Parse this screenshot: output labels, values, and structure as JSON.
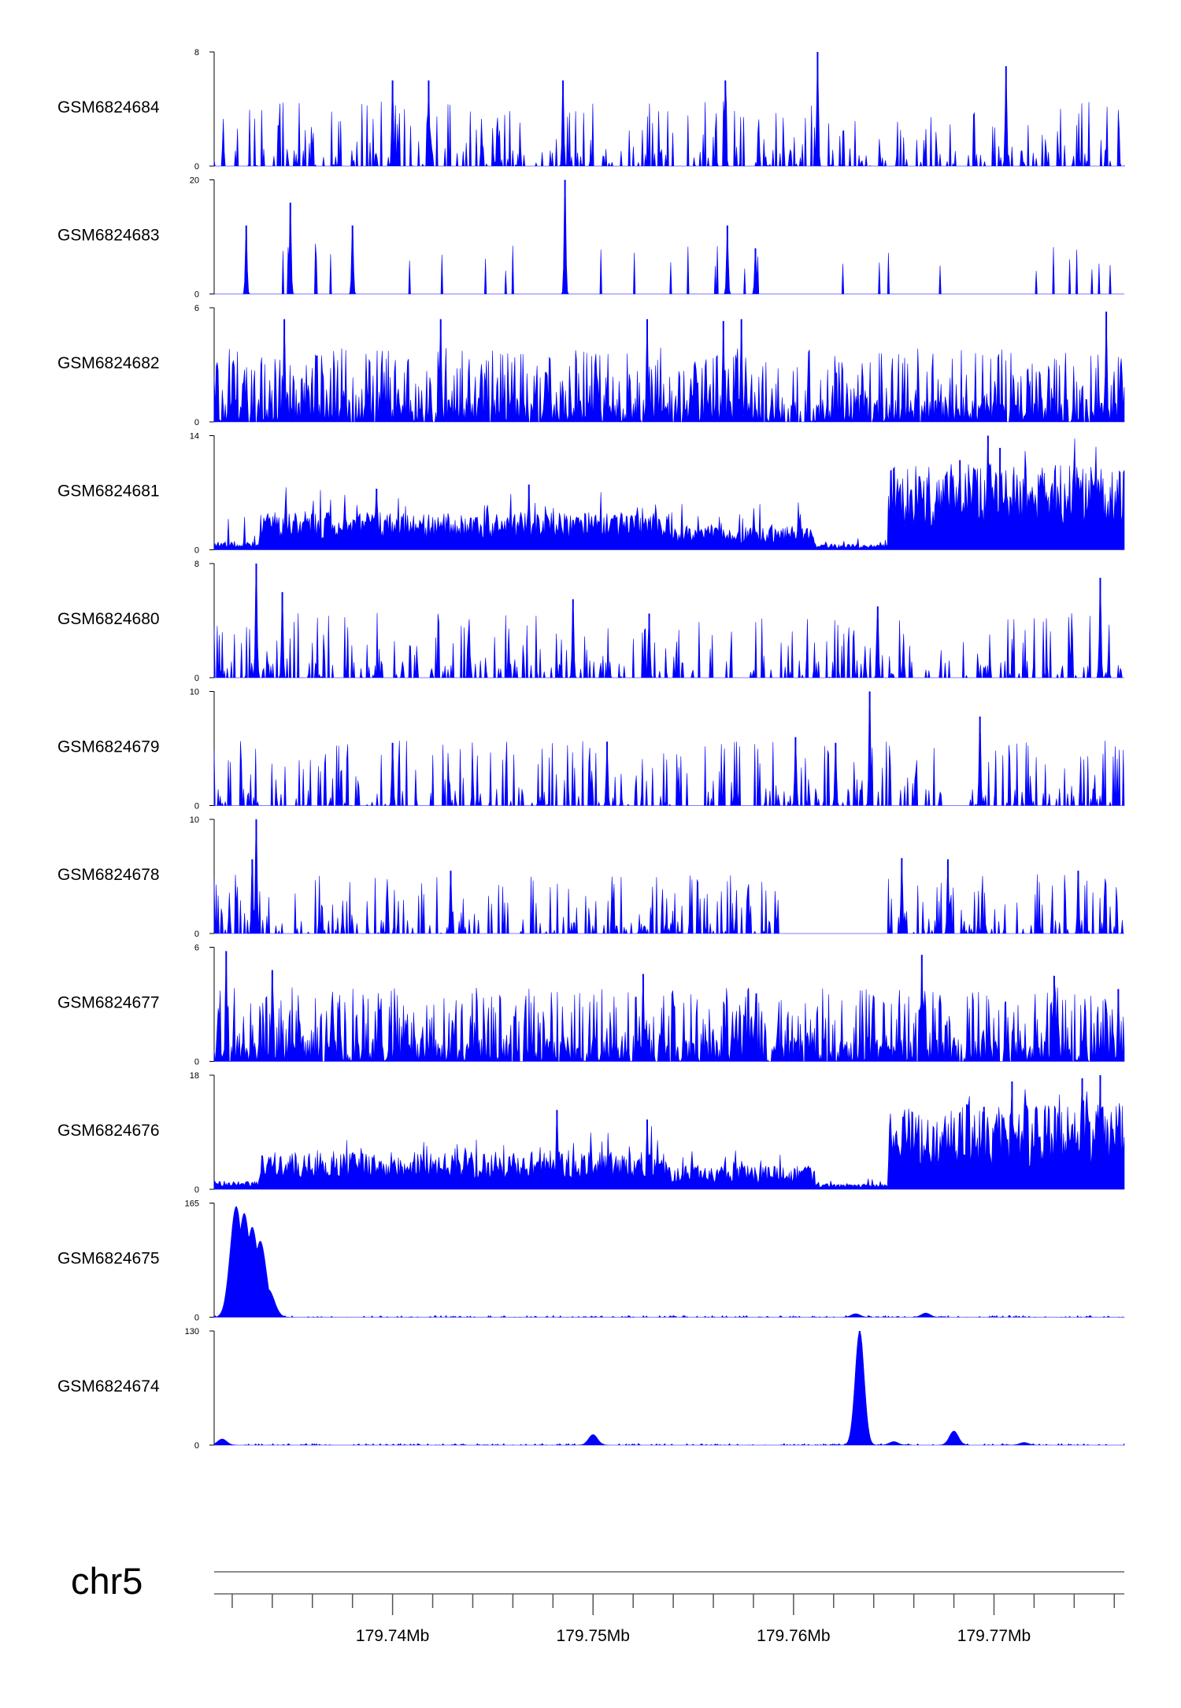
{
  "chart_data": {
    "type": "area",
    "title": "",
    "chromosome": "chr5",
    "xlim": [
      179.7311,
      179.7765
    ],
    "x_unit": "Mb",
    "x_major_ticks": [
      179.74,
      179.75,
      179.76,
      179.77
    ],
    "x_tick_labels": [
      "179.74Mb",
      "179.75Mb",
      "179.76Mb",
      "179.77Mb"
    ],
    "fill_color": "#0000ff",
    "axis_color": "#000000",
    "tracks": [
      {
        "name": "GSM6824684",
        "ymax": 8,
        "ymin": 0,
        "profile": "sparse",
        "seed": 684,
        "peaks": [
          [
            179.74,
            6
          ],
          [
            179.7418,
            6
          ],
          [
            179.7485,
            6
          ],
          [
            179.7612,
            8
          ],
          [
            179.7706,
            7
          ],
          [
            179.7566,
            6
          ]
        ]
      },
      {
        "name": "GSM6824683",
        "ymax": 20,
        "ymin": 0,
        "profile": "very-sparse",
        "seed": 683,
        "peaks": [
          [
            179.7327,
            12
          ],
          [
            179.7349,
            16
          ],
          [
            179.738,
            12
          ],
          [
            179.7486,
            20
          ],
          [
            179.7567,
            12
          ],
          [
            179.7581,
            8
          ]
        ]
      },
      {
        "name": "GSM6824682",
        "ymax": 6,
        "ymin": 0,
        "profile": "dense",
        "seed": 682,
        "peaks": [
          [
            179.7346,
            5.4
          ],
          [
            179.7424,
            5.4
          ],
          [
            179.7527,
            5.4
          ],
          [
            179.7565,
            5.3
          ],
          [
            179.7574,
            5.4
          ],
          [
            179.7756,
            5.8
          ]
        ]
      },
      {
        "name": "GSM6824681",
        "ymax": 14,
        "ymin": 0,
        "profile": "rising",
        "seed": 681,
        "peaks": [
          [
            179.7392,
            7.5
          ],
          [
            179.7468,
            8
          ],
          [
            179.765,
            10
          ],
          [
            179.7697,
            14
          ],
          [
            179.7703,
            12.5
          ],
          [
            179.7683,
            11
          ]
        ]
      },
      {
        "name": "GSM6824680",
        "ymax": 8,
        "ymin": 0,
        "profile": "sparse",
        "seed": 680,
        "peaks": [
          [
            179.7332,
            8
          ],
          [
            179.7345,
            6
          ],
          [
            179.749,
            5.5
          ],
          [
            179.7528,
            4.5
          ],
          [
            179.7642,
            5
          ],
          [
            179.7753,
            7
          ]
        ]
      },
      {
        "name": "GSM6824679",
        "ymax": 10,
        "ymin": 0,
        "profile": "sparse",
        "seed": 679,
        "peaks": [
          [
            179.7638,
            10
          ],
          [
            179.7621,
            5.5
          ],
          [
            179.7601,
            6
          ],
          [
            179.7693,
            7.8
          ],
          [
            179.74,
            5.5
          ],
          [
            179.7507,
            5.6
          ]
        ]
      },
      {
        "name": "GSM6824678",
        "ymax": 10,
        "ymin": 0,
        "profile": "gappy",
        "seed": 678,
        "peaks": [
          [
            179.7332,
            10
          ],
          [
            179.733,
            6.5
          ],
          [
            179.7429,
            5.5
          ],
          [
            179.7654,
            6.6
          ],
          [
            179.7677,
            6.5
          ],
          [
            179.7742,
            5.5
          ]
        ]
      },
      {
        "name": "GSM6824677",
        "ymax": 6,
        "ymin": 0,
        "profile": "dense",
        "seed": 677,
        "peaks": [
          [
            179.7317,
            5.8
          ],
          [
            179.734,
            4.8
          ],
          [
            179.7525,
            4.6
          ],
          [
            179.7664,
            5.6
          ],
          [
            179.773,
            4.5
          ],
          [
            179.7762,
            3.8
          ]
        ]
      },
      {
        "name": "GSM6824676",
        "ymax": 18,
        "ymin": 0,
        "profile": "rising",
        "seed": 676,
        "peaks": [
          [
            179.7482,
            12.5
          ],
          [
            179.7527,
            11
          ],
          [
            179.7709,
            17
          ],
          [
            179.7753,
            18
          ],
          [
            179.7744,
            17.5
          ],
          [
            179.7695,
            13
          ]
        ]
      },
      {
        "name": "GSM6824675",
        "ymax": 165,
        "ymin": 0,
        "profile": "spike",
        "seed": 675,
        "peaks": [
          [
            179.7322,
            160
          ],
          [
            179.7326,
            150
          ],
          [
            179.733,
            130
          ],
          [
            179.7334,
            110
          ],
          [
            179.7338,
            40
          ],
          [
            179.7631,
            5
          ],
          [
            179.7666,
            6
          ]
        ]
      },
      {
        "name": "GSM6824674",
        "ymax": 130,
        "ymin": 0,
        "profile": "spike",
        "seed": 674,
        "peaks": [
          [
            179.7633,
            130
          ],
          [
            179.768,
            16
          ],
          [
            179.75,
            12
          ],
          [
            179.7315,
            7
          ],
          [
            179.765,
            4
          ],
          [
            179.7715,
            3
          ]
        ]
      }
    ]
  }
}
